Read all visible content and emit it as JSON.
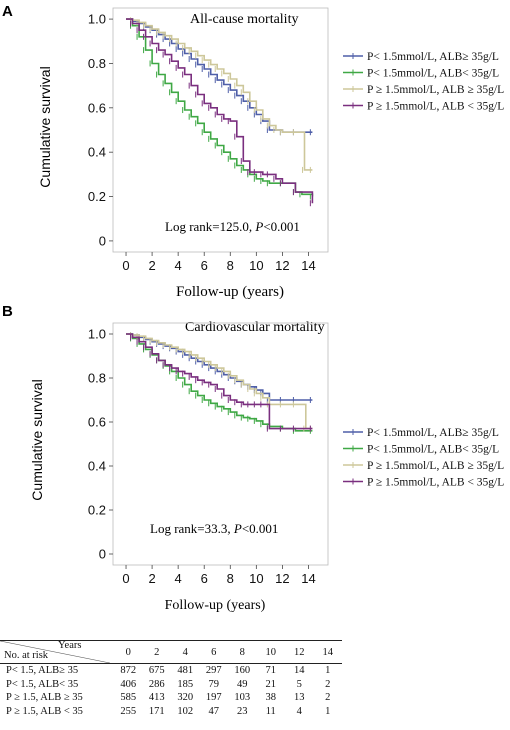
{
  "chart_data": [
    {
      "type": "line",
      "panel": "A",
      "title": "All-cause mortality",
      "xlabel": "Follow-up (years)",
      "ylabel": "Cumulative survival",
      "xlim": [
        -1,
        15.5
      ],
      "ylim": [
        -0.05,
        1.05
      ],
      "xticks": [
        "0",
        "2",
        "4",
        "6",
        "8",
        "10",
        "12",
        "14"
      ],
      "yticks": [
        "0",
        "0.2",
        "0.4",
        "0.6",
        "0.8",
        "1.0"
      ],
      "annotation_prefix": "Log rank=125.0, ",
      "annotation_p": "P",
      "annotation_suffix": "<0.001",
      "legend_position": "right",
      "series": [
        {
          "name": "P< 1.5mmol/L, ALB≥ 35g/L",
          "color": "#4f5fa8",
          "x": [
            0,
            0.5,
            1,
            1.5,
            2,
            2.5,
            3,
            3.5,
            4,
            4.5,
            5,
            5.5,
            6,
            6.5,
            7,
            7.5,
            8,
            8.5,
            9,
            9.5,
            10,
            10.5,
            11,
            12,
            13,
            14.3
          ],
          "y": [
            1.0,
            0.99,
            0.98,
            0.965,
            0.95,
            0.93,
            0.91,
            0.89,
            0.865,
            0.845,
            0.82,
            0.795,
            0.775,
            0.75,
            0.725,
            0.705,
            0.68,
            0.655,
            0.63,
            0.6,
            0.57,
            0.54,
            0.5,
            0.49,
            0.49,
            0.49
          ]
        },
        {
          "name": "P< 1.5mmol/L, ALB< 35g/L",
          "color": "#3fa845",
          "x": [
            0,
            0.5,
            1,
            1.5,
            2,
            2.5,
            3,
            3.5,
            4,
            4.5,
            5,
            5.5,
            6,
            6.5,
            7,
            7.5,
            8,
            8.5,
            9,
            9.5,
            10,
            10.5,
            11,
            12,
            13,
            13.5,
            14.3
          ],
          "y": [
            1.0,
            0.97,
            0.92,
            0.86,
            0.8,
            0.75,
            0.71,
            0.67,
            0.63,
            0.59,
            0.56,
            0.53,
            0.49,
            0.46,
            0.43,
            0.4,
            0.37,
            0.34,
            0.32,
            0.3,
            0.28,
            0.27,
            0.26,
            0.26,
            0.22,
            0.21,
            0.2
          ]
        },
        {
          "name": "P ≥ 1.5mmol/L, ALB ≥ 35g/L",
          "color": "#cdc79a",
          "x": [
            0,
            0.5,
            1,
            1.5,
            2,
            2.5,
            3,
            3.5,
            4,
            4.5,
            5,
            5.5,
            6,
            6.5,
            7,
            7.5,
            8,
            8.5,
            9,
            9.5,
            10,
            10.5,
            11,
            11.5,
            12,
            13,
            13.7,
            14.3
          ],
          "y": [
            1.0,
            0.995,
            0.985,
            0.97,
            0.955,
            0.94,
            0.925,
            0.91,
            0.89,
            0.87,
            0.855,
            0.835,
            0.815,
            0.795,
            0.775,
            0.755,
            0.73,
            0.7,
            0.67,
            0.63,
            0.59,
            0.55,
            0.52,
            0.5,
            0.49,
            0.49,
            0.32,
            0.32
          ]
        },
        {
          "name": "P ≥ 1.5mmol/L, ALB < 35g/L",
          "color": "#7a2f7f",
          "x": [
            0,
            0.5,
            1,
            1.5,
            2,
            2.5,
            3,
            3.5,
            4,
            4.5,
            5,
            5.5,
            6,
            6.5,
            7,
            7.5,
            8,
            8.5,
            9,
            9.5,
            10,
            10.5,
            11,
            11.5,
            12,
            13,
            14.3
          ],
          "y": [
            1.0,
            0.98,
            0.95,
            0.92,
            0.89,
            0.86,
            0.84,
            0.81,
            0.78,
            0.75,
            0.7,
            0.66,
            0.62,
            0.6,
            0.57,
            0.55,
            0.54,
            0.47,
            0.36,
            0.31,
            0.31,
            0.3,
            0.3,
            0.28,
            0.26,
            0.22,
            0.17
          ]
        }
      ]
    },
    {
      "type": "line",
      "panel": "B",
      "title": "Cardiovascular mortality",
      "xlabel": "Follow-up (years)",
      "ylabel": "Cumulative survival",
      "xlim": [
        -1,
        15.5
      ],
      "ylim": [
        -0.05,
        1.05
      ],
      "xticks": [
        "0",
        "2",
        "4",
        "6",
        "8",
        "10",
        "12",
        "14"
      ],
      "yticks": [
        "0",
        "0.2",
        "0.4",
        "0.6",
        "0.8",
        "1.0"
      ],
      "annotation_prefix": "Log rank=33.3, ",
      "annotation_p": "P",
      "annotation_suffix": "<0.001",
      "legend_position": "right",
      "series": [
        {
          "name": "P< 1.5mmol/L, ALB≥ 35g/L",
          "color": "#4f5fa8",
          "x": [
            0,
            0.5,
            1,
            1.5,
            2,
            2.5,
            3,
            3.5,
            4,
            4.5,
            5,
            5.5,
            6,
            6.5,
            7,
            7.5,
            8,
            8.5,
            9,
            9.5,
            10,
            10.5,
            11,
            12,
            13,
            14.3
          ],
          "y": [
            1.0,
            0.995,
            0.985,
            0.975,
            0.965,
            0.955,
            0.945,
            0.935,
            0.92,
            0.905,
            0.89,
            0.875,
            0.86,
            0.845,
            0.83,
            0.815,
            0.8,
            0.785,
            0.77,
            0.76,
            0.745,
            0.73,
            0.7,
            0.7,
            0.7,
            0.7
          ]
        },
        {
          "name": "P< 1.5mmol/L, ALB< 35g/L",
          "color": "#3fa845",
          "x": [
            0,
            0.5,
            1,
            1.5,
            2,
            2.5,
            3,
            3.5,
            4,
            4.5,
            5,
            5.5,
            6,
            6.5,
            7,
            7.5,
            8,
            8.5,
            9,
            9.5,
            10,
            10.5,
            11,
            12,
            13,
            14.3
          ],
          "y": [
            1.0,
            0.98,
            0.955,
            0.93,
            0.905,
            0.88,
            0.855,
            0.83,
            0.8,
            0.77,
            0.74,
            0.72,
            0.7,
            0.685,
            0.67,
            0.66,
            0.645,
            0.63,
            0.62,
            0.615,
            0.605,
            0.59,
            0.58,
            0.57,
            0.56,
            0.56
          ]
        },
        {
          "name": "P ≥ 1.5mmol/L, ALB ≥ 35g/L",
          "color": "#cdc79a",
          "x": [
            0,
            0.5,
            1,
            1.5,
            2,
            2.5,
            3,
            3.5,
            4,
            4.5,
            5,
            5.5,
            6,
            6.5,
            7,
            7.5,
            8,
            8.5,
            9,
            9.5,
            10,
            10.5,
            11,
            12,
            13,
            13.8,
            14.3
          ],
          "y": [
            1.0,
            0.995,
            0.99,
            0.98,
            0.97,
            0.96,
            0.95,
            0.94,
            0.93,
            0.92,
            0.905,
            0.89,
            0.875,
            0.86,
            0.845,
            0.83,
            0.81,
            0.79,
            0.77,
            0.75,
            0.73,
            0.71,
            0.68,
            0.68,
            0.68,
            0.57,
            0.57
          ]
        },
        {
          "name": "P ≥ 1.5mmol/L, ALB < 35g/L",
          "color": "#7a2f7f",
          "x": [
            0,
            0.5,
            1,
            1.5,
            2,
            2.5,
            3,
            3.5,
            4,
            4.5,
            5,
            5.5,
            6,
            6.5,
            7,
            7.5,
            8,
            8.5,
            9,
            9.5,
            10,
            10.5,
            11,
            12,
            13,
            14.3
          ],
          "y": [
            1.0,
            0.985,
            0.965,
            0.94,
            0.91,
            0.88,
            0.86,
            0.845,
            0.83,
            0.82,
            0.805,
            0.79,
            0.78,
            0.77,
            0.75,
            0.72,
            0.7,
            0.69,
            0.68,
            0.68,
            0.68,
            0.68,
            0.57,
            0.57,
            0.57,
            0.57
          ]
        }
      ]
    },
    {
      "type": "table",
      "header_years": "Years",
      "header_risk": "No. at risk",
      "columns": [
        "0",
        "2",
        "4",
        "6",
        "8",
        "10",
        "12",
        "14"
      ],
      "rows": [
        {
          "label": "P< 1.5, ALB≥ 35",
          "values": [
            "872",
            "675",
            "481",
            "297",
            "160",
            "71",
            "14",
            "1"
          ]
        },
        {
          "label": "P< 1.5, ALB< 35",
          "values": [
            "406",
            "286",
            "185",
            "79",
            "49",
            "21",
            "5",
            "2"
          ]
        },
        {
          "label": "P ≥ 1.5, ALB ≥ 35",
          "values": [
            "585",
            "413",
            "320",
            "197",
            "103",
            "38",
            "13",
            "2"
          ]
        },
        {
          "label": "P ≥ 1.5, ALB < 35",
          "values": [
            "255",
            "171",
            "102",
            "47",
            "23",
            "11",
            "4",
            "1"
          ]
        }
      ]
    }
  ]
}
